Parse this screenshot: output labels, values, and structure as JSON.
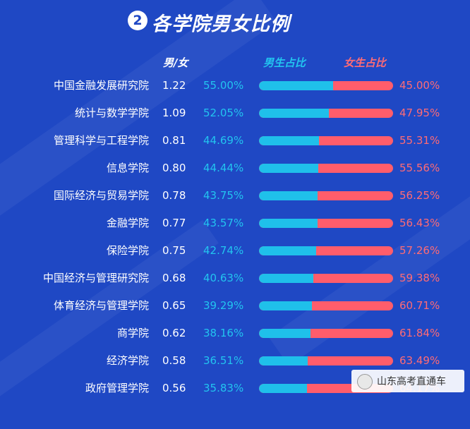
{
  "header": {
    "badge": "2",
    "title": "各学院男女比例"
  },
  "columns": {
    "ratio": "男/女",
    "male": "男生占比",
    "female": "女生占比"
  },
  "colors": {
    "background": "#1f48c4",
    "male": "#1fc0ea",
    "female": "#ff5d6b",
    "male_text": "#22c4ef",
    "female_text": "#ff6b75"
  },
  "chart_data": {
    "type": "bar",
    "orientation": "horizontal",
    "stacked": true,
    "title": "各学院男女比例",
    "categories": [
      "中国金融发展研究院",
      "统计与数学学院",
      "管理科学与工程学院",
      "信息学院",
      "国际经济与贸易学院",
      "金融学院",
      "保险学院",
      "中国经济与管理研究院",
      "体育经济与管理学院",
      "商学院",
      "经济学院",
      "政府管理学院"
    ],
    "ratio": [
      "1.22",
      "1.09",
      "0.81",
      "0.80",
      "0.78",
      "0.77",
      "0.75",
      "0.68",
      "0.65",
      "0.62",
      "0.58",
      "0.56"
    ],
    "series": [
      {
        "name": "男生占比",
        "values": [
          55.0,
          52.05,
          44.69,
          44.44,
          43.75,
          43.57,
          42.74,
          40.63,
          39.29,
          38.16,
          36.51,
          35.83
        ],
        "labels": [
          "55.00%",
          "52.05%",
          "44.69%",
          "44.44%",
          "43.75%",
          "43.57%",
          "42.74%",
          "40.63%",
          "39.29%",
          "38.16%",
          "36.51%",
          "35.83%"
        ]
      },
      {
        "name": "女生占比",
        "values": [
          45.0,
          47.95,
          55.31,
          55.56,
          56.25,
          56.43,
          57.26,
          59.38,
          60.71,
          61.84,
          63.49,
          64.17
        ],
        "labels": [
          "45.00%",
          "47.95%",
          "55.31%",
          "55.56%",
          "56.25%",
          "56.43%",
          "57.26%",
          "59.38%",
          "60.71%",
          "61.84%",
          "63.49%",
          "64.17%"
        ]
      }
    ],
    "xlim": [
      0,
      100
    ]
  },
  "watermark": {
    "text": "山东高考直通车",
    "icon": "wechat-icon"
  }
}
